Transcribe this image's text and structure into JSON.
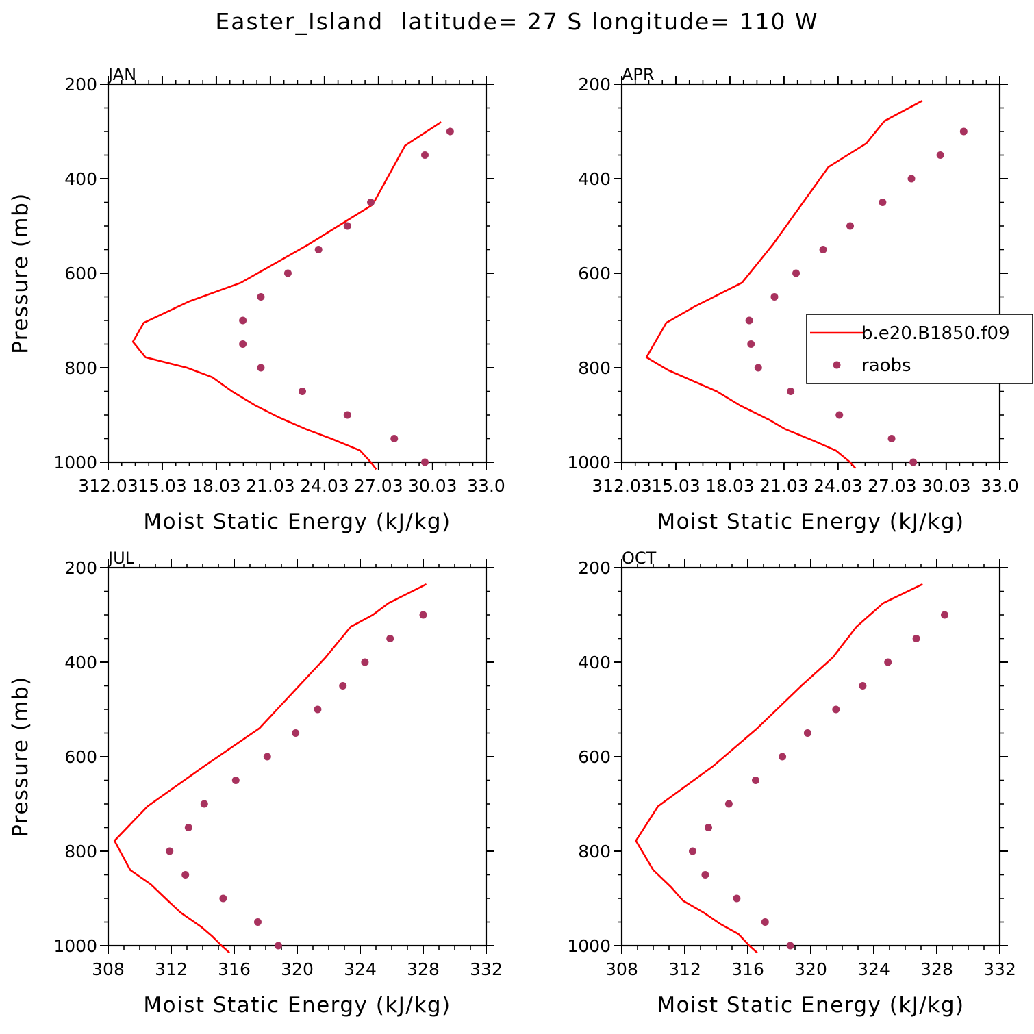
{
  "figure": {
    "title": "Easter_Island  latitude= 27 S longitude= 110 W"
  },
  "colors": {
    "model": "#ff0000",
    "obs": "#a8325e",
    "axis": "#000000"
  },
  "legend": {
    "model_label": "b.e20.B1850.f09",
    "obs_label": "raobs",
    "location": "upper-right of APR panel"
  },
  "chart_data": [
    {
      "type": "line",
      "panel": "JAN",
      "xlabel": "Moist Static Energy (kJ/kg)",
      "ylabel": "Pressure (mb)",
      "xlim": [
        312.03,
        333.0
      ],
      "ylim": [
        1000,
        200
      ],
      "xticks": [
        312.03,
        315.03,
        318.03,
        321.03,
        324.03,
        327.03,
        330.03,
        333.0
      ],
      "xticklabels": [
        "312.03",
        "15.03",
        "18.03",
        "21.03",
        "24.03",
        "27.03",
        "30.03",
        "33.0"
      ],
      "yticks": [
        200,
        400,
        600,
        800,
        1000
      ],
      "series": [
        {
          "name": "b.e20.B1850.f09",
          "kind": "line",
          "x": [
            326.9,
            326.6,
            326.0,
            324.4,
            323.0,
            321.5,
            320.2,
            318.9,
            317.8,
            316.4,
            314.1,
            313.4,
            314.0,
            316.5,
            319.4,
            323.1,
            326.7,
            328.5,
            330.5
          ],
          "y": [
            1015,
            1000,
            975,
            950,
            930,
            905,
            880,
            850,
            820,
            800,
            778,
            745,
            705,
            660,
            620,
            540,
            455,
            330,
            280
          ]
        },
        {
          "name": "raobs",
          "kind": "scatter",
          "x": [
            329.6,
            327.9,
            325.3,
            322.8,
            320.5,
            319.5,
            319.5,
            320.5,
            322.0,
            323.7,
            325.3,
            326.6,
            329.6,
            331.0
          ],
          "y": [
            1000,
            950,
            900,
            850,
            800,
            750,
            700,
            650,
            600,
            550,
            500,
            450,
            350,
            300
          ]
        }
      ]
    },
    {
      "type": "line",
      "panel": "APR",
      "xlabel": "Moist Static Energy (kJ/kg)",
      "ylabel": "",
      "xlim": [
        312.03,
        333.0
      ],
      "ylim": [
        1000,
        200
      ],
      "xticks": [
        312.03,
        315.03,
        318.03,
        321.03,
        324.03,
        327.03,
        330.03,
        333.0
      ],
      "xticklabels": [
        "312.03",
        "15.03",
        "18.03",
        "21.03",
        "24.03",
        "27.03",
        "30.03",
        "33.0"
      ],
      "yticks": [
        200,
        400,
        600,
        800,
        1000
      ],
      "series": [
        {
          "name": "b.e20.B1850.f09",
          "kind": "line",
          "x": [
            325.0,
            324.7,
            323.9,
            322.7,
            321.1,
            320.2,
            318.6,
            317.3,
            314.6,
            313.4,
            314.5,
            316.1,
            318.7,
            320.4,
            323.5,
            325.6,
            326.6,
            328.7
          ],
          "y": [
            1013,
            1000,
            975,
            955,
            930,
            910,
            880,
            850,
            805,
            778,
            705,
            670,
            620,
            540,
            375,
            325,
            278,
            235
          ]
        },
        {
          "name": "raobs",
          "kind": "scatter",
          "x": [
            328.2,
            327.0,
            324.1,
            321.4,
            319.6,
            319.2,
            319.1,
            320.5,
            321.7,
            323.2,
            324.7,
            326.5,
            328.1,
            329.7,
            331.0
          ],
          "y": [
            1000,
            950,
            900,
            850,
            800,
            750,
            700,
            650,
            600,
            550,
            500,
            450,
            400,
            350,
            300
          ]
        }
      ]
    },
    {
      "type": "line",
      "panel": "JUL",
      "xlabel": "Moist Static Energy (kJ/kg)",
      "ylabel": "Pressure (mb)",
      "xlim": [
        308,
        332
      ],
      "ylim": [
        1000,
        200
      ],
      "xticks": [
        308,
        312,
        316,
        320,
        324,
        328,
        332
      ],
      "xticklabels": [
        "308",
        "312",
        "316",
        "320",
        "324",
        "328",
        "332"
      ],
      "yticks": [
        200,
        400,
        600,
        800,
        1000
      ],
      "series": [
        {
          "name": "b.e20.B1850.f09",
          "kind": "line",
          "x": [
            315.7,
            315.2,
            314.6,
            313.9,
            312.6,
            311.8,
            310.7,
            309.4,
            308.4,
            310.5,
            314.1,
            317.6,
            321.8,
            323.4,
            324.8,
            325.8,
            328.2
          ],
          "y": [
            1015,
            1000,
            980,
            960,
            930,
            905,
            870,
            840,
            778,
            705,
            620,
            540,
            390,
            325,
            300,
            275,
            235
          ]
        },
        {
          "name": "raobs",
          "kind": "scatter",
          "x": [
            318.8,
            317.5,
            315.3,
            312.9,
            311.9,
            313.1,
            314.1,
            316.1,
            318.1,
            319.9,
            321.3,
            322.9,
            324.3,
            325.9,
            328.0
          ],
          "y": [
            1000,
            950,
            900,
            850,
            800,
            750,
            700,
            650,
            600,
            550,
            500,
            450,
            400,
            350,
            300
          ]
        }
      ]
    },
    {
      "type": "line",
      "panel": "OCT",
      "xlabel": "Moist Static Energy (kJ/kg)",
      "ylabel": "",
      "xlim": [
        308,
        332
      ],
      "ylim": [
        1000,
        200
      ],
      "xticks": [
        308,
        312,
        316,
        320,
        324,
        328,
        332
      ],
      "xticklabels": [
        "308",
        "312",
        "316",
        "320",
        "324",
        "328",
        "332"
      ],
      "yticks": [
        200,
        400,
        600,
        800,
        1000
      ],
      "series": [
        {
          "name": "b.e20.B1850.f09",
          "kind": "line",
          "x": [
            316.6,
            316.1,
            315.4,
            314.3,
            313.2,
            311.9,
            311.1,
            310.0,
            308.9,
            310.3,
            313.8,
            316.6,
            319.4,
            321.4,
            322.9,
            324.6,
            327.1
          ],
          "y": [
            1015,
            1000,
            975,
            955,
            930,
            905,
            875,
            840,
            778,
            705,
            620,
            540,
            450,
            390,
            325,
            275,
            235
          ]
        },
        {
          "name": "raobs",
          "kind": "scatter",
          "x": [
            318.7,
            317.1,
            315.3,
            313.3,
            312.5,
            313.5,
            314.8,
            316.5,
            318.2,
            319.8,
            321.6,
            323.3,
            324.9,
            326.7,
            328.5
          ],
          "y": [
            1000,
            950,
            900,
            850,
            800,
            750,
            700,
            650,
            600,
            550,
            500,
            450,
            400,
            350,
            300
          ]
        }
      ]
    }
  ]
}
